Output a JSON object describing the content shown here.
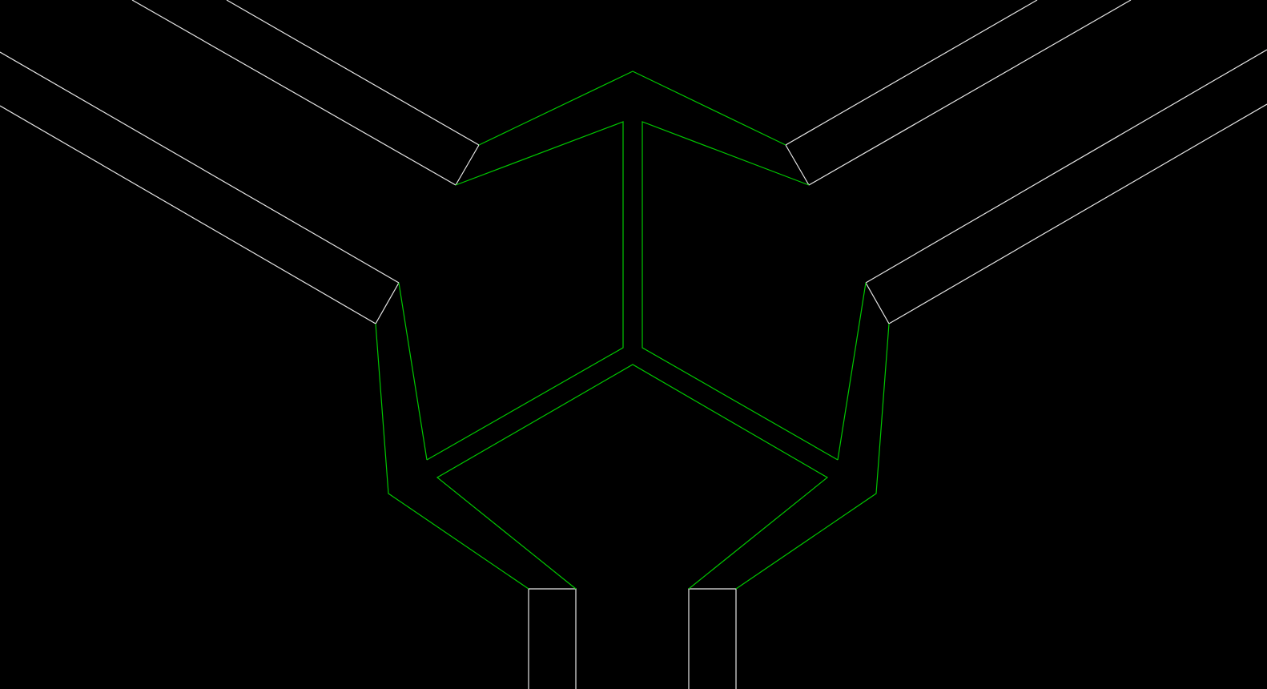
{
  "colors": {
    "background": "#000000",
    "outline": "#e6e6e6",
    "highlight": "#00c800"
  },
  "diagram": {
    "kind": "wireframe-junction",
    "branches": [
      "upper-left-outer",
      "upper-left-inner",
      "upper-right-inner",
      "upper-right-outer",
      "bottom-left",
      "bottom-right"
    ],
    "highlighted_region": "central-junction-hub"
  }
}
